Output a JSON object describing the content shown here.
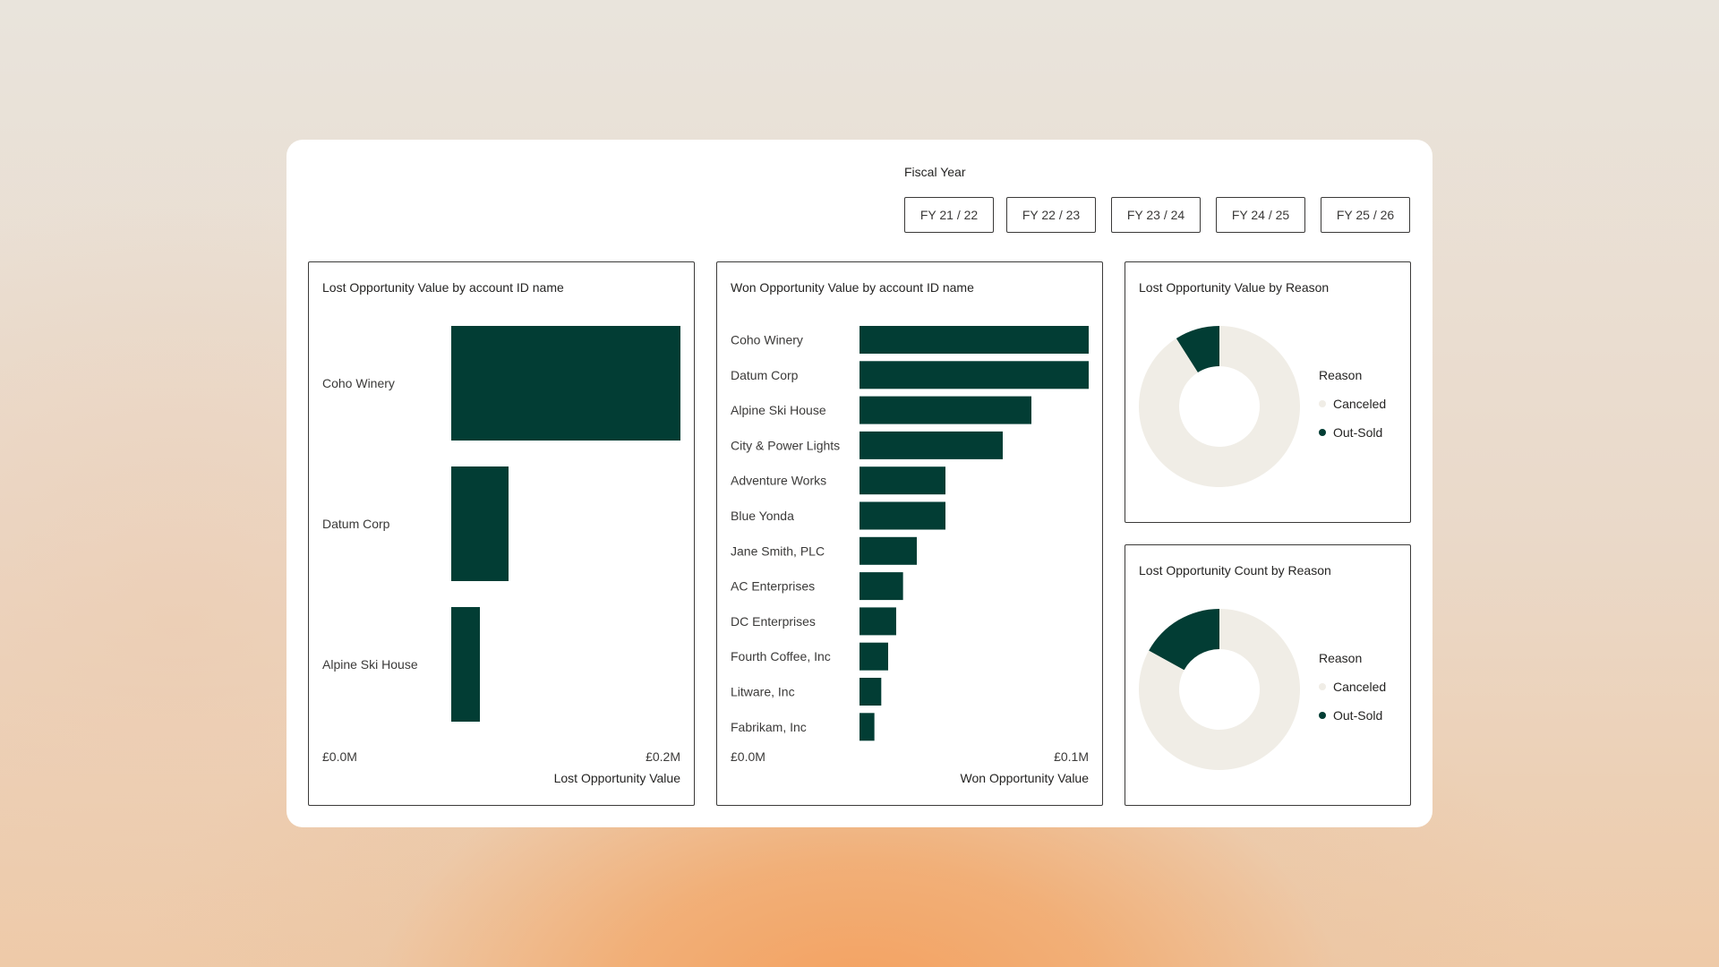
{
  "filter": {
    "label": "Fiscal Year",
    "options": [
      "FY 21 / 22",
      "FY 22 / 23",
      "FY 23 / 24",
      "FY 24 / 25",
      "FY 25 / 26"
    ]
  },
  "colors": {
    "dark": "#023d34",
    "light": "#f0ede6",
    "text": "#3b3a39"
  },
  "chart_data": [
    {
      "type": "bar",
      "orientation": "horizontal",
      "title": "Lost Opportunity Value by account ID name",
      "categories": [
        "Coho Winery",
        "Datum Corp",
        "Alpine Ski House"
      ],
      "values": [
        0.2,
        0.05,
        0.025
      ],
      "xlim": [
        0,
        0.2
      ],
      "xticks": [
        "£0.0M",
        "£0.2M"
      ],
      "xlabel": "Lost Opportunity Value",
      "ylabel": ""
    },
    {
      "type": "bar",
      "orientation": "horizontal",
      "title": "Won Opportunity Value by account ID name",
      "categories": [
        "Coho Winery",
        "Datum Corp",
        "Alpine Ski House",
        "City & Power Lights",
        "Adventure Works",
        "Blue Yonda",
        "Jane Smith, PLC",
        "AC Enterprises",
        "DC Enterprises",
        "Fourth Coffee, Inc",
        "Litware, Inc",
        "Fabrikam, Inc"
      ],
      "values": [
        0.1,
        0.1,
        0.075,
        0.0625,
        0.0375,
        0.0375,
        0.025,
        0.019,
        0.016,
        0.0125,
        0.0095,
        0.0065
      ],
      "xlim": [
        0,
        0.1
      ],
      "xticks": [
        "£0.0M",
        "£0.1M"
      ],
      "xlabel": "Won Opportunity Value",
      "ylabel": ""
    },
    {
      "type": "pie",
      "donut": true,
      "title": "Lost Opportunity Value by Reason",
      "legend_title": "Reason",
      "labels": [
        "Canceled",
        "Out-Sold"
      ],
      "values": [
        91,
        9
      ]
    },
    {
      "type": "pie",
      "donut": true,
      "title": "Lost Opportunity Count by Reason",
      "legend_title": "Reason",
      "labels": [
        "Canceled",
        "Out-Sold"
      ],
      "values": [
        83,
        17
      ]
    }
  ]
}
